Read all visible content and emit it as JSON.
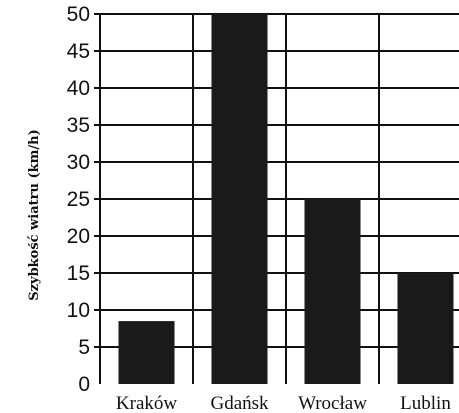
{
  "chart_data": {
    "type": "bar",
    "title": "",
    "xlabel": "",
    "ylabel": "Szybkość wiatru (km/h)",
    "categories": [
      "Kraków",
      "Gdańsk",
      "Wrocław",
      "Lublin"
    ],
    "values": [
      8.5,
      50,
      25,
      15
    ],
    "ylim": [
      0,
      50
    ],
    "yticks": [
      0,
      5,
      10,
      15,
      20,
      25,
      30,
      35,
      40,
      45,
      50
    ],
    "grid": true,
    "legend": "none",
    "colors": {
      "bar": "#1a1a1a",
      "grid": "#111111",
      "background": "#ffffff"
    }
  }
}
